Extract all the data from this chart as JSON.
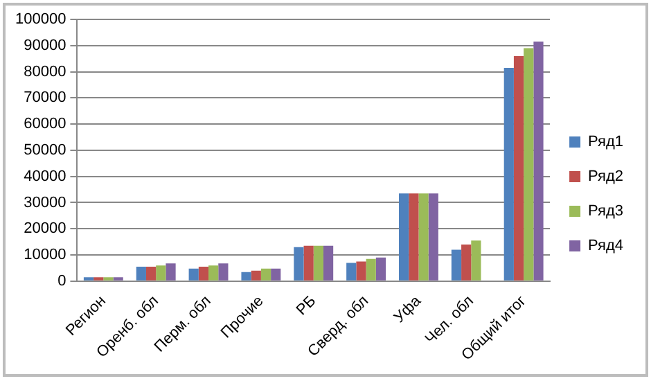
{
  "chart_data": {
    "type": "bar",
    "categories": [
      "Регион",
      "Оренб. обл",
      "Перм. обл",
      "Прочие",
      "РБ",
      "Сверд. обл",
      "Уфа",
      "Чел. обл",
      "Общий итог"
    ],
    "series": [
      {
        "name": "Ряд1",
        "color": "#4f81bd",
        "values": [
          1500,
          5500,
          4800,
          3500,
          13000,
          7000,
          33500,
          12000,
          81500
        ]
      },
      {
        "name": "Ряд2",
        "color": "#c0504d",
        "values": [
          1500,
          5500,
          5500,
          4000,
          13500,
          7500,
          33500,
          14000,
          86000
        ]
      },
      {
        "name": "Ряд3",
        "color": "#9bbb59",
        "values": [
          1500,
          6000,
          6000,
          4800,
          13500,
          8500,
          33500,
          15500,
          89000
        ]
      },
      {
        "name": "Ряд4",
        "color": "#8064a2",
        "values": [
          1500,
          6800,
          6800,
          4800,
          13500,
          9000,
          33500,
          null,
          91500
        ]
      }
    ],
    "ylim": [
      0,
      100000
    ],
    "yticks": [
      0,
      10000,
      20000,
      30000,
      40000,
      50000,
      60000,
      70000,
      80000,
      90000,
      100000
    ],
    "grid": "y",
    "legend": "right"
  }
}
